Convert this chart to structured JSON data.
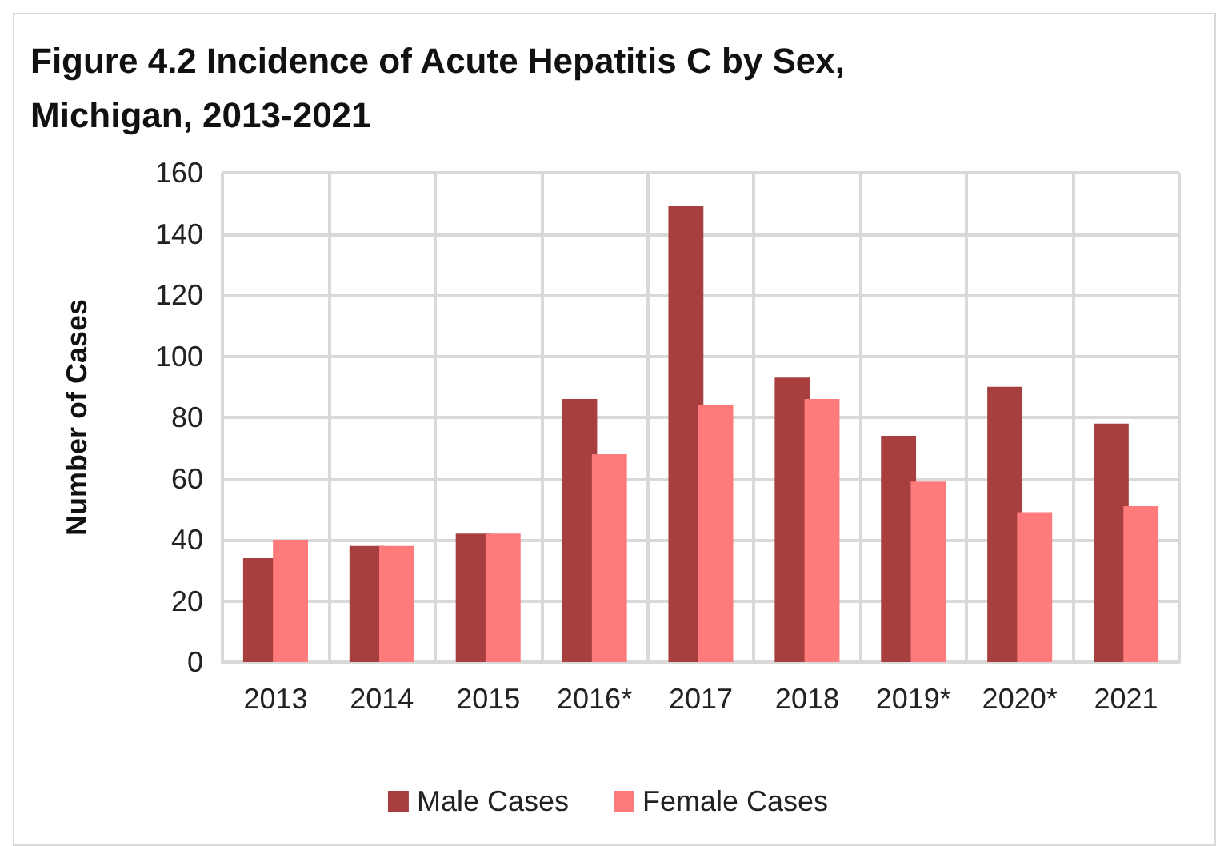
{
  "chart_data": {
    "type": "bar",
    "title": "Figure 4.2 Incidence of Acute Hepatitis C by Sex, Michigan, 2013-2021",
    "categories": [
      "2013",
      "2014",
      "2015",
      "2016*",
      "2017",
      "2018",
      "2019*",
      "2020*",
      "2021"
    ],
    "series": [
      {
        "name": "Male Cases",
        "color": "#a83f3f",
        "values": [
          34,
          38,
          42,
          86,
          149,
          93,
          74,
          90,
          78
        ]
      },
      {
        "name": "Female Cases",
        "color": "#ff7a7a",
        "values": [
          40,
          38,
          42,
          68,
          84,
          86,
          59,
          49,
          51
        ]
      }
    ],
    "ylabel": "Number of Cases",
    "ylim": [
      0,
      160
    ],
    "yticks": [
      0,
      20,
      40,
      60,
      80,
      100,
      120,
      140,
      160
    ],
    "grid": true,
    "legend": "bottom"
  }
}
